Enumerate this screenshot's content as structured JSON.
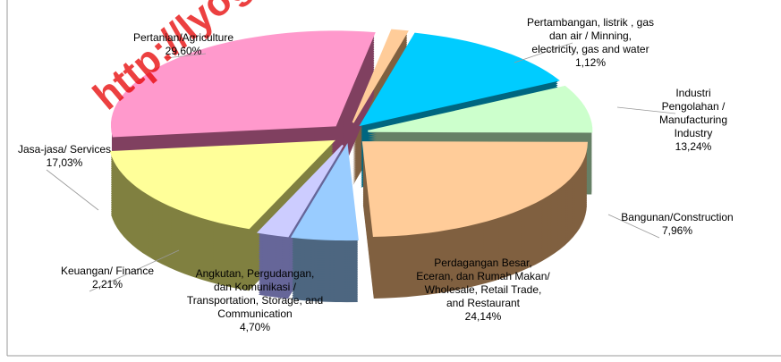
{
  "chart_data": {
    "type": "pie3d",
    "categories": [
      "Pertambangan, listrik , gas\ndan air / Minning,\nelectricity, gas and water",
      "Industri Pengolahan /\nManufacturing Industry",
      "Bangunan/Construction",
      "Perdagangan Besar,\nEceran, dan Rumah Makan/\nWholesale, Retail Trade,\nand Restaurant",
      "Angkutan, Pergudangan,\ndan Komunikasi  /\nTransportation, Storage, and\nCommunication",
      "Keuangan/ Finance",
      "Jasa-jasa/ Services",
      "Pertanian/Agriculture"
    ],
    "values": [
      1.12,
      13.24,
      7.96,
      24.14,
      4.7,
      2.21,
      17.03,
      29.6
    ],
    "value_labels": [
      "1,12%",
      "13,24%",
      "7,96%",
      "24,14%",
      "4,70%",
      "2,21%",
      "17,03%",
      "29,60%"
    ],
    "colors": [
      "#ffcc99",
      "#00ccff",
      "#ccffcc",
      "#ffcc99",
      "#99ccff",
      "#ccccff",
      "#ffff99",
      "#ff99cc"
    ],
    "side_colors": [
      "#806040",
      "#006680",
      "#668066",
      "#806040",
      "#4d6680",
      "#666699",
      "#808040",
      "#804060"
    ],
    "watermark": "http://lyoga"
  }
}
